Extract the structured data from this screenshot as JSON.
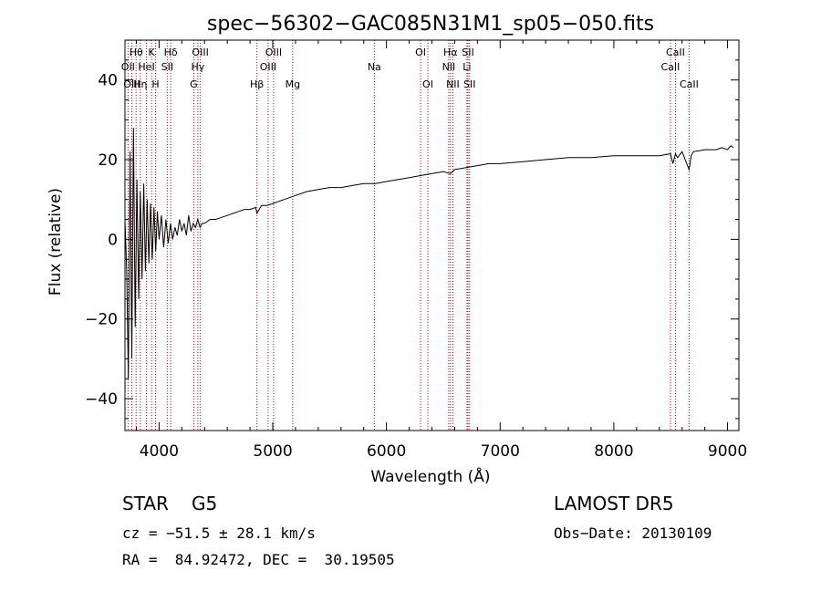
{
  "chart_data": {
    "type": "line",
    "title": "spec−56302−GAC085N31M1_sp05−050.fits",
    "xlabel": "Wavelength (Å)",
    "ylabel": "Flux (relative)",
    "xlim": [
      3700,
      9100
    ],
    "ylim": [
      -48,
      50
    ],
    "x_ticks": [
      {
        "value": 4000,
        "label": "4000"
      },
      {
        "value": 5000,
        "label": "5000"
      },
      {
        "value": 6000,
        "label": "6000"
      },
      {
        "value": 7000,
        "label": "7000"
      },
      {
        "value": 8000,
        "label": "8000"
      },
      {
        "value": 9000,
        "label": "9000"
      }
    ],
    "y_ticks": [
      {
        "value": -40,
        "label": "−40"
      },
      {
        "value": -20,
        "label": "−20"
      },
      {
        "value": 0,
        "label": "0"
      },
      {
        "value": 20,
        "label": "20"
      },
      {
        "value": 40,
        "label": "40"
      }
    ],
    "series": [
      {
        "x": [
          3700,
          3715,
          3730,
          3745,
          3760,
          3775,
          3790,
          3805,
          3820,
          3835,
          3850,
          3865,
          3880,
          3895,
          3910,
          3925,
          3940,
          3955,
          3970,
          3985,
          4000,
          4020,
          4040,
          4060,
          4080,
          4100,
          4120,
          4140,
          4160,
          4180,
          4200,
          4220,
          4240,
          4260,
          4280,
          4300,
          4320,
          4340,
          4360,
          4380,
          4400,
          4450,
          4500,
          4550,
          4600,
          4650,
          4700,
          4750,
          4800,
          4850,
          4861,
          4900,
          4950,
          5000,
          5100,
          5200,
          5300,
          5400,
          5500,
          5600,
          5700,
          5800,
          5900,
          6000,
          6100,
          6200,
          6300,
          6400,
          6500,
          6563,
          6600,
          6700,
          6800,
          6900,
          7000,
          7200,
          7400,
          7600,
          7800,
          8000,
          8200,
          8400,
          8498,
          8520,
          8542,
          8560,
          8600,
          8662,
          8680,
          8700,
          8800,
          8900,
          8950,
          9000,
          9030,
          9050
        ],
        "y": [
          5,
          -8,
          -35,
          22,
          -30,
          28,
          -22,
          15,
          -15,
          12,
          -10,
          14,
          -8,
          10,
          -6,
          9,
          -5,
          8,
          -3,
          7,
          0,
          6,
          -2,
          5,
          -1,
          4,
          0,
          3,
          1,
          5,
          2,
          4,
          1,
          6,
          2,
          4,
          3,
          5,
          3,
          4,
          4,
          5,
          5,
          5.5,
          6,
          6.5,
          7,
          7.5,
          7.5,
          8,
          6.5,
          8.5,
          8.5,
          9,
          10,
          11,
          12,
          12.5,
          13,
          13,
          13.5,
          14,
          14,
          14.5,
          15,
          15.5,
          16,
          16.5,
          17,
          16.5,
          17.5,
          18,
          18.5,
          19,
          19,
          19.5,
          20,
          20.5,
          20.5,
          21,
          21,
          21,
          21.5,
          19,
          21.5,
          20.5,
          22,
          17.5,
          21,
          22,
          22.5,
          22.5,
          23,
          22.5,
          23.5,
          23
        ]
      }
    ],
    "spectral_lines": [
      {
        "label": "Hθ",
        "x": 3798,
        "row": 1
      },
      {
        "label": "OII",
        "x": 3727,
        "row": 2
      },
      {
        "label": "Hη",
        "x": 3835,
        "row": 3
      },
      {
        "label": "OIII",
        "x": 3760,
        "row": 3
      },
      {
        "label": "HeI",
        "x": 3889,
        "row": 2
      },
      {
        "label": "K",
        "x": 3934,
        "row": 1
      },
      {
        "label": "H",
        "x": 3969,
        "row": 3
      },
      {
        "label": "SII",
        "x": 4072,
        "row": 2
      },
      {
        "label": "Hδ",
        "x": 4102,
        "row": 1
      },
      {
        "label": "OIII",
        "x": 4363,
        "row": 1
      },
      {
        "label": "Hγ",
        "x": 4341,
        "row": 2
      },
      {
        "label": "G",
        "x": 4305,
        "row": 3
      },
      {
        "label": "Hβ",
        "x": 4861,
        "row": 3
      },
      {
        "label": "OIII",
        "x": 5007,
        "row": 1
      },
      {
        "label": "OIII",
        "x": 4959,
        "row": 2
      },
      {
        "label": "Mg",
        "x": 5175,
        "row": 3
      },
      {
        "label": "Na",
        "x": 5893,
        "row": 2
      },
      {
        "label": "OI",
        "x": 6300,
        "row": 1
      },
      {
        "label": "OI",
        "x": 6364,
        "row": 3
      },
      {
        "label": "Hα",
        "x": 6563,
        "row": 1
      },
      {
        "label": "NII",
        "x": 6548,
        "row": 2
      },
      {
        "label": "NII",
        "x": 6584,
        "row": 3
      },
      {
        "label": "SII",
        "x": 6717,
        "row": 1
      },
      {
        "label": "Li",
        "x": 6708,
        "row": 2
      },
      {
        "label": "SII",
        "x": 6731,
        "row": 3
      },
      {
        "label": "CaII",
        "x": 8542,
        "row": 1
      },
      {
        "label": "CaII",
        "x": 8498,
        "row": 2
      },
      {
        "label": "CaII",
        "x": 8662,
        "row": 3
      }
    ]
  },
  "info": {
    "object_class": "STAR",
    "subclass": "G5",
    "survey": "LAMOST DR5",
    "redshift": "cz = −51.5 ± 28.1 km/s",
    "obs_date": "Obs−Date: 20130109",
    "coords": "RA =  84.92472, DEC =  30.19505"
  },
  "colors": {
    "spectrum": "#000000",
    "line_marker": "#cc0000",
    "background": "#ffffff"
  }
}
